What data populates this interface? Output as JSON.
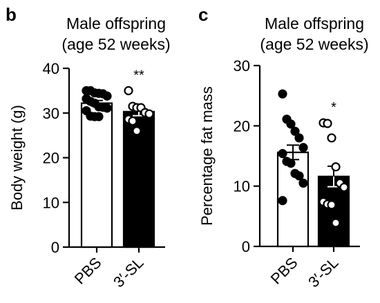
{
  "panels": [
    {
      "letter": "b",
      "title_line1": "Male offspring",
      "title_line2": "(age 52 weeks)"
    },
    {
      "letter": "c",
      "title_line1": "Male offspring",
      "title_line2": "(age 52 weeks)"
    }
  ],
  "colors": {
    "control_fill": "#ffffff",
    "treatment_fill": "#000000",
    "ink": "#000000"
  },
  "chart_data": [
    {
      "type": "bar",
      "panel": "b",
      "title": "Male offspring (age 52 weeks)",
      "xlabel": "",
      "ylabel": "Body weight (g)",
      "ylim": [
        0,
        40
      ],
      "yticks": [
        "0",
        "10",
        "20",
        "30",
        "40"
      ],
      "categories": [
        "PBS",
        "3′-SL"
      ],
      "values": [
        32.2,
        30.3
      ],
      "sem": [
        0.6,
        0.9
      ],
      "significance": [
        "",
        "**"
      ],
      "points": [
        [
          35.0,
          35.0,
          34.5,
          34.4,
          34.3,
          33.8,
          33.2,
          32.6,
          32.2,
          31.4,
          31.3,
          31.1,
          30.5,
          29.3,
          29.2,
          29.2
        ],
        [
          35.0,
          31.5,
          31.2,
          31.2,
          30.1,
          29.8,
          28.6,
          28.2,
          26.0
        ]
      ],
      "point_styles": [
        "filled",
        "open"
      ],
      "grid": false
    },
    {
      "type": "bar",
      "panel": "c",
      "title": "Male offspring (age 52 weeks)",
      "xlabel": "",
      "ylabel": "Percentage fat mass",
      "ylim": [
        0,
        30
      ],
      "yticks": [
        "0",
        "10",
        "20",
        "30"
      ],
      "categories": [
        "PBS",
        "3′-SL"
      ],
      "values": [
        15.6,
        11.6
      ],
      "sem": [
        1.2,
        1.7
      ],
      "significance": [
        "",
        "*"
      ],
      "points": [
        [
          25.3,
          21.1,
          20.3,
          19.1,
          18.0,
          16.4,
          15.4,
          14.1,
          13.8,
          12.1,
          11.7,
          10.5,
          7.6
        ],
        [
          20.5,
          20.4,
          18.0,
          13.2,
          10.5,
          9.8,
          7.4,
          7.0,
          6.9,
          3.9
        ]
      ],
      "point_styles": [
        "filled",
        "open"
      ],
      "grid": false
    }
  ]
}
